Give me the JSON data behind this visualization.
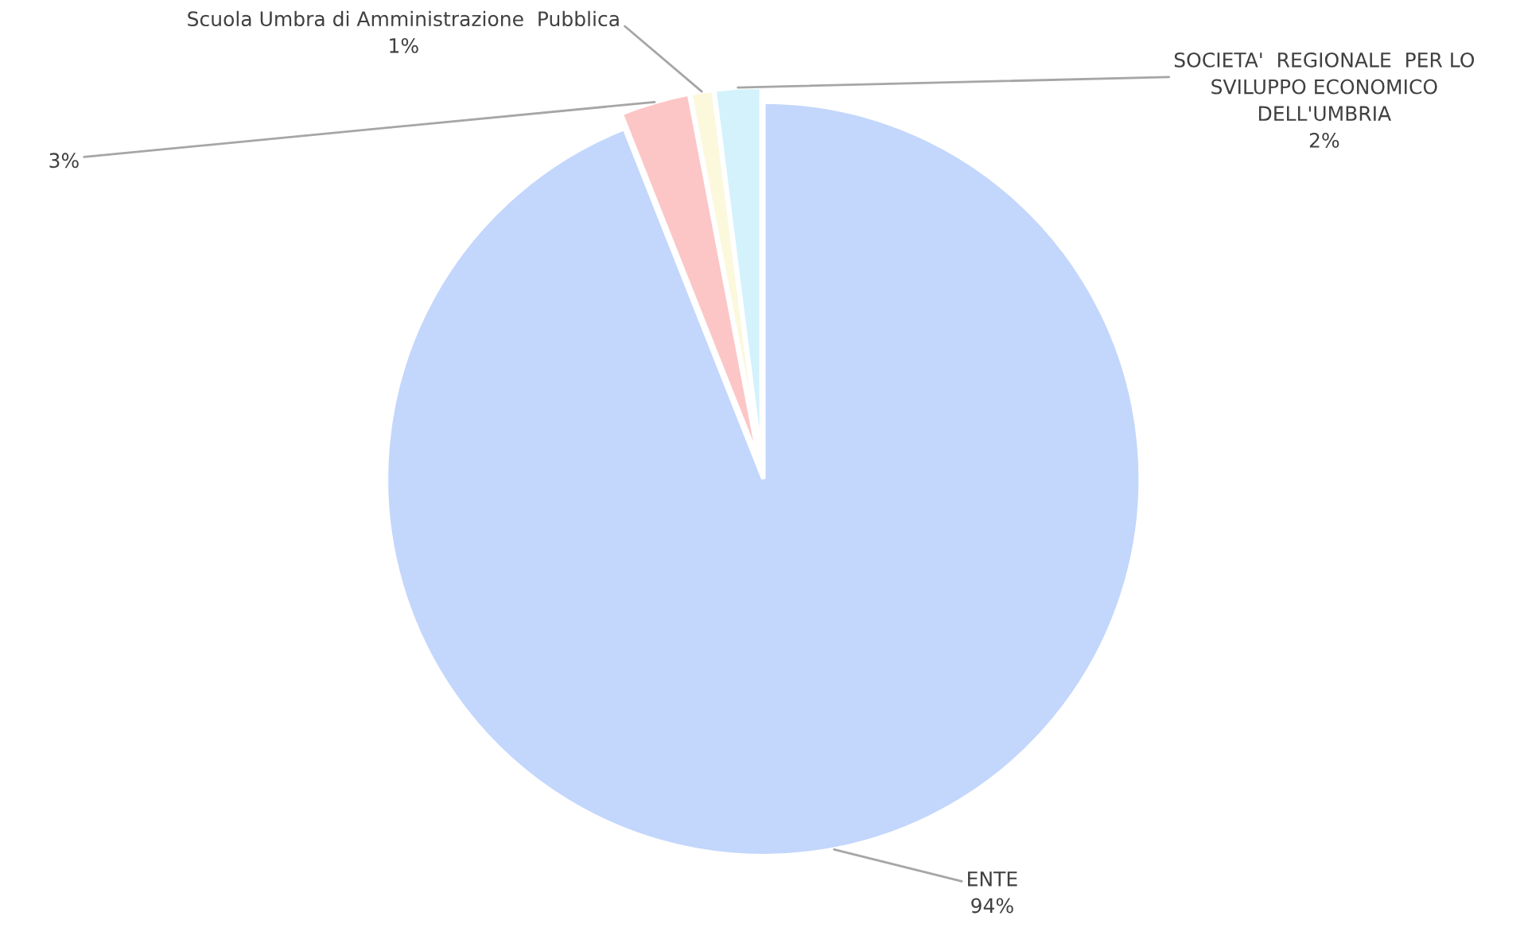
{
  "chart_data": {
    "type": "pie",
    "categories": [
      "ENTE",
      null,
      "Scuola Umbra di Amministrazione  Pubblica",
      "SOCIETA'  REGIONALE  PER LO\nSVILUPPO ECONOMICO\nDELL'UMBRIA"
    ],
    "values": [
      94,
      3,
      1,
      2
    ],
    "value_labels": [
      "94%",
      "3%",
      "1%",
      "2%"
    ],
    "colors": [
      "#c3d6fc",
      "#fcc6c6",
      "#fbf8dc",
      "#d3f2fc"
    ],
    "legend": false
  }
}
